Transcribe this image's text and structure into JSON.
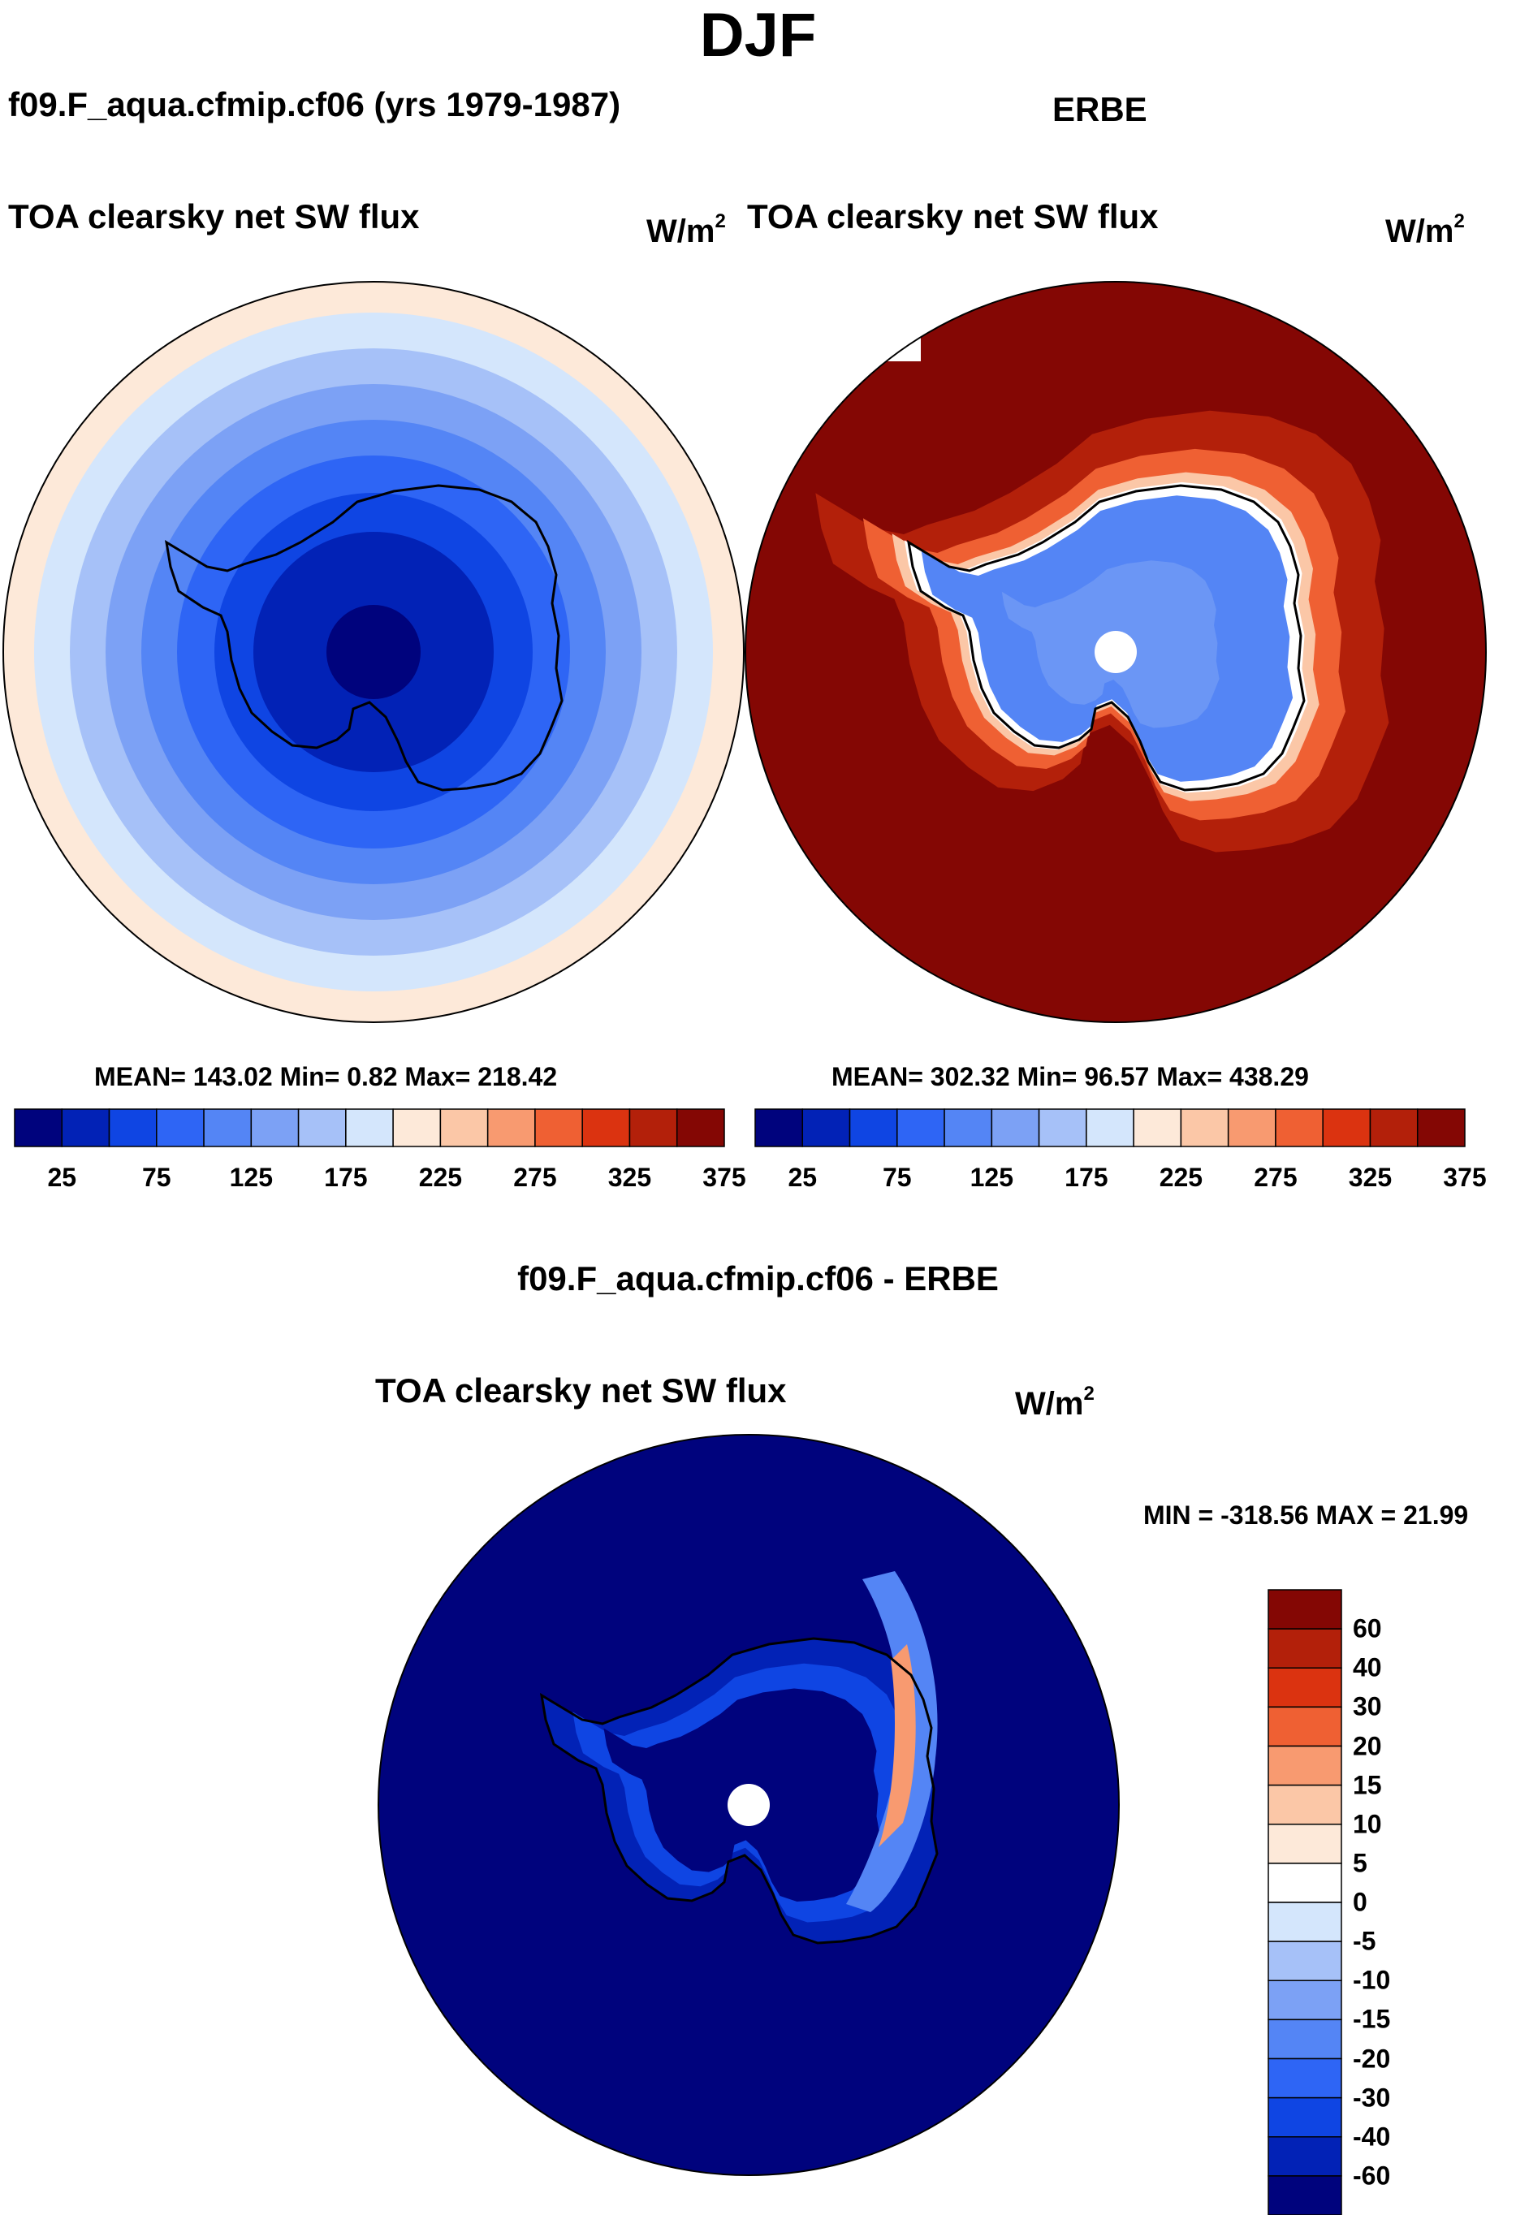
{
  "title": "DJF",
  "panel_left": {
    "case": "f09.F_aqua.cfmip.cf06 (yrs 1979-1987)",
    "variable": "TOA clearsky net SW flux",
    "units_base": "W/m",
    "units_exp": "2",
    "stats_label": "MEAN= 143.02  Min=   0.82  Max= 218.42"
  },
  "panel_right": {
    "case": "ERBE",
    "variable": "TOA clearsky net SW flux",
    "units_base": "W/m",
    "units_exp": "2",
    "stats_label": "MEAN= 302.32  Min=  96.57  Max= 438.29"
  },
  "panel_diff": {
    "case": "f09.F_aqua.cfmip.cf06 - ERBE",
    "variable": "TOA clearsky net SW flux",
    "units_base": "W/m",
    "units_exp": "2",
    "stats_label": "MIN = -318.56 MAX =  21.99"
  },
  "chart_data": [
    {
      "type": "heatmap",
      "projection": "south polar stereographic",
      "title": "TOA clearsky net SW flux",
      "units": "W/m2",
      "mean": 143.02,
      "min": 0.82,
      "max": 218.42,
      "colorbar": {
        "orientation": "horizontal",
        "levels": [
          25,
          50,
          75,
          100,
          125,
          150,
          175,
          200,
          225,
          250,
          275,
          300,
          325,
          350,
          375
        ],
        "tick_labels": [
          "25",
          "75",
          "125",
          "175",
          "225",
          "275",
          "325",
          "375"
        ],
        "colors": [
          "#00037d",
          "#0222b6",
          "#0f45e3",
          "#2e65f5",
          "#5485f5",
          "#7ca1f5",
          "#a6c1f8",
          "#d4e6fc",
          "#fde9d9",
          "#fbc7a7",
          "#f89a70",
          "#ef6033",
          "#db3310",
          "#b3200a",
          "#840704"
        ]
      }
    },
    {
      "type": "heatmap",
      "projection": "south polar stereographic",
      "title": "TOA clearsky net SW flux",
      "units": "W/m2",
      "mean": 302.32,
      "min": 96.57,
      "max": 438.29,
      "colorbar": {
        "orientation": "horizontal",
        "levels": [
          25,
          50,
          75,
          100,
          125,
          150,
          175,
          200,
          225,
          250,
          275,
          300,
          325,
          350,
          375
        ],
        "tick_labels": [
          "25",
          "75",
          "125",
          "175",
          "225",
          "275",
          "325",
          "375"
        ],
        "colors": [
          "#00037d",
          "#0222b6",
          "#0f45e3",
          "#2e65f5",
          "#5485f5",
          "#7ca1f5",
          "#a6c1f8",
          "#d4e6fc",
          "#fde9d9",
          "#fbc7a7",
          "#f89a70",
          "#ef6033",
          "#db3310",
          "#b3200a",
          "#840704"
        ]
      }
    },
    {
      "type": "heatmap",
      "projection": "south polar stereographic",
      "title": "TOA clearsky net SW flux",
      "units": "W/m2",
      "min": -318.56,
      "max": 21.99,
      "colorbar": {
        "orientation": "vertical",
        "levels": [
          "60",
          "40",
          "30",
          "20",
          "15",
          "10",
          "5",
          "0",
          "-5",
          "-10",
          "-15",
          "-20",
          "-30",
          "-40",
          "-60"
        ],
        "colors": [
          "#840704",
          "#b3200a",
          "#db3310",
          "#ef6033",
          "#f89a70",
          "#fbc7a7",
          "#fde9d9",
          "#ffffff",
          "#d4e6fc",
          "#a6c1f8",
          "#7ca1f5",
          "#5485f5",
          "#2e65f5",
          "#0f45e3",
          "#0222b6",
          "#00037d"
        ]
      }
    }
  ]
}
